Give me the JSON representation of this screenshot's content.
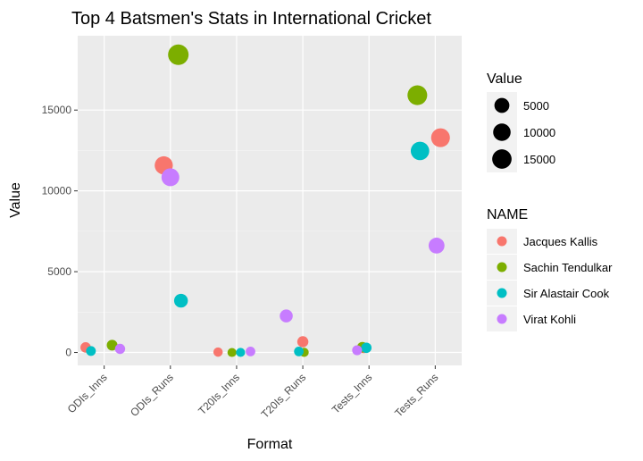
{
  "chart_data": {
    "type": "scatter",
    "title": "Top 4 Batsmen's Stats in International Cricket",
    "xlabel": "Format",
    "ylabel": "Value",
    "categories": [
      "ODIs_Inns",
      "ODIs_Runs",
      "T20Is_Inns",
      "T20Is_Runs",
      "Tests_Inns",
      "Tests_Runs"
    ],
    "ylim": [
      -800,
      19600
    ],
    "yticks": [
      0,
      5000,
      10000,
      15000
    ],
    "grid": true,
    "series": [
      {
        "name": "Jacques Kallis",
        "color": "#F8766D",
        "points": [
          {
            "category": "ODIs_Inns",
            "y": 314,
            "jitter": -0.28
          },
          {
            "category": "ODIs_Runs",
            "y": 11579,
            "jitter": -0.1
          },
          {
            "category": "T20Is_Inns",
            "y": 25,
            "jitter": -0.28
          },
          {
            "category": "T20Is_Runs",
            "y": 666,
            "jitter": 0.0
          },
          {
            "category": "Tests_Inns",
            "y": 280,
            "jitter": -0.08
          },
          {
            "category": "Tests_Runs",
            "y": 13289,
            "jitter": 0.08
          }
        ]
      },
      {
        "name": "Sachin Tendulkar",
        "color": "#7CAE00",
        "points": [
          {
            "category": "ODIs_Inns",
            "y": 452,
            "jitter": 0.12
          },
          {
            "category": "ODIs_Runs",
            "y": 18426,
            "jitter": 0.12
          },
          {
            "category": "T20Is_Inns",
            "y": 1,
            "jitter": -0.07
          },
          {
            "category": "T20Is_Runs",
            "y": 10,
            "jitter": 0.02
          },
          {
            "category": "Tests_Inns",
            "y": 329,
            "jitter": -0.1
          },
          {
            "category": "Tests_Runs",
            "y": 15921,
            "jitter": -0.27
          }
        ]
      },
      {
        "name": "Sir Alastair Cook",
        "color": "#00BFC4",
        "points": [
          {
            "category": "ODIs_Inns",
            "y": 92,
            "jitter": -0.2
          },
          {
            "category": "ODIs_Runs",
            "y": 3204,
            "jitter": 0.16
          },
          {
            "category": "T20Is_Inns",
            "y": 4,
            "jitter": 0.06
          },
          {
            "category": "T20Is_Runs",
            "y": 61,
            "jitter": -0.06
          },
          {
            "category": "Tests_Inns",
            "y": 291,
            "jitter": -0.04
          },
          {
            "category": "Tests_Runs",
            "y": 12472,
            "jitter": -0.23
          }
        ]
      },
      {
        "name": "Virat Kohli",
        "color": "#C77CFF",
        "points": [
          {
            "category": "ODIs_Inns",
            "y": 222,
            "jitter": 0.24
          },
          {
            "category": "ODIs_Runs",
            "y": 10843,
            "jitter": 0.0
          },
          {
            "category": "T20Is_Inns",
            "y": 62,
            "jitter": 0.21
          },
          {
            "category": "T20Is_Runs",
            "y": 2263,
            "jitter": -0.25
          },
          {
            "category": "Tests_Inns",
            "y": 138,
            "jitter": -0.18
          },
          {
            "category": "Tests_Runs",
            "y": 6613,
            "jitter": 0.02
          }
        ]
      }
    ],
    "size_legend": {
      "title": "Value",
      "breaks": [
        5000,
        10000,
        15000
      ],
      "labels": [
        "5000",
        "10000",
        "15000"
      ]
    },
    "color_legend": {
      "title": "NAME"
    }
  }
}
